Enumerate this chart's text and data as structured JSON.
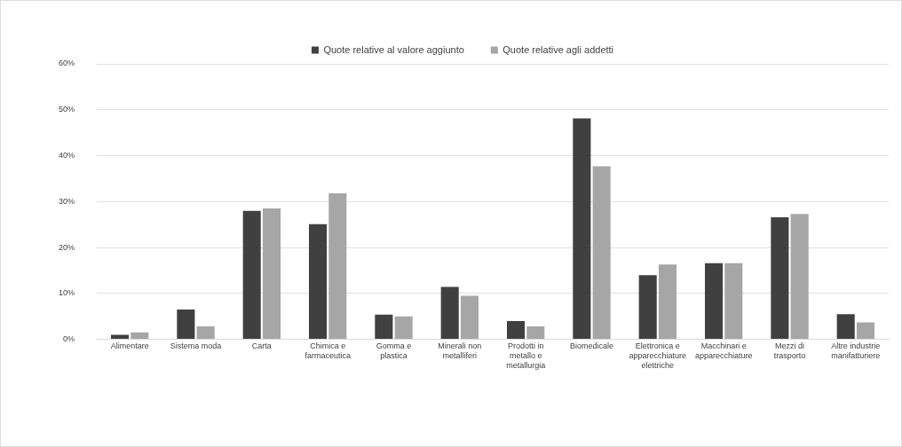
{
  "chart_data": {
    "type": "bar",
    "categories": [
      "Alimentare",
      "Sistema moda",
      "Carta",
      "Chimica e farmaceutica",
      "Gomma e plastica",
      "Minerali non metalliferi",
      "Prodotti in metallo e metallurgia",
      "Biomedicale",
      "Elettronica e apparecchiature elettriche",
      "Macchinari e apparecchiature",
      "Mezzi di trasporto",
      "Altre industrie manifatturiere"
    ],
    "series": [
      {
        "name": "Quote relative al valore aggiunto",
        "color": "#404040",
        "values": [
          1.0,
          6.5,
          28.0,
          25.1,
          5.4,
          11.4,
          4.0,
          48.1,
          14.0,
          16.6,
          26.6,
          5.5
        ]
      },
      {
        "name": "Quote relative agli addetti",
        "color": "#a6a6a6",
        "values": [
          1.5,
          2.8,
          28.5,
          31.8,
          5.0,
          9.5,
          2.8,
          37.7,
          16.3,
          16.6,
          27.3,
          3.7
        ]
      }
    ],
    "ylim": [
      0,
      60
    ],
    "yticks": [
      {
        "value": 0,
        "label": "0%"
      },
      {
        "value": 10,
        "label": "10%"
      },
      {
        "value": 20,
        "label": "20%"
      },
      {
        "value": 30,
        "label": "30%"
      },
      {
        "value": 40,
        "label": "40%"
      },
      {
        "value": 50,
        "label": "50%"
      },
      {
        "value": 60,
        "label": "60%"
      }
    ],
    "grid": "y",
    "legend": "top"
  }
}
